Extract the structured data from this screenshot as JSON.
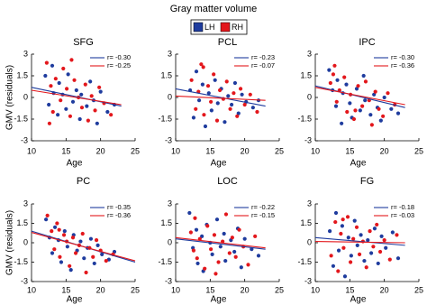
{
  "title": "Gray matter volume",
  "legend": [
    {
      "name": "LH",
      "color": "#1f3c9e"
    },
    {
      "name": "RH",
      "color": "#e3171c"
    }
  ],
  "chart_data": [
    {
      "type": "scatter",
      "title": "SFG",
      "xlabel": "Age",
      "ylabel": "GMV (residuals)",
      "xlim": [
        10,
        25
      ],
      "xticks": [
        10,
        15,
        20,
        25
      ],
      "ylim": [
        -3,
        3
      ],
      "yticks": [
        -3,
        -1.5,
        0,
        1.5,
        3
      ],
      "series": [
        {
          "color": "#1f3c9e",
          "x": [
            12,
            12.5,
            13,
            13.2,
            13.8,
            14,
            14.5,
            15,
            15.3,
            16,
            16.5,
            17,
            17.2,
            18,
            18.5,
            19,
            19.5,
            20,
            21,
            22
          ],
          "values": [
            1.5,
            -0.5,
            2.2,
            0.3,
            -1.2,
            1.0,
            0.2,
            -0.8,
            1.6,
            -0.3,
            0.5,
            -1.5,
            0.2,
            -0.6,
            1.1,
            -0.2,
            -1.8,
            0.4,
            -1.0,
            -0.5
          ]
        },
        {
          "color": "#e3171c",
          "x": [
            12.2,
            12.8,
            13.1,
            13.5,
            14.2,
            14.6,
            15.1,
            15.6,
            16.2,
            16.8,
            17.3,
            17.8,
            18.2,
            18.7,
            19.2,
            19.8,
            20.5,
            21.5,
            12.6,
            15.8
          ],
          "values": [
            2.4,
            0.8,
            -1.0,
            1.3,
            -0.2,
            2.0,
            0.6,
            -1.3,
            1.2,
            0.0,
            -0.7,
            0.9,
            -1.6,
            0.1,
            -0.9,
            0.7,
            -0.4,
            -1.2,
            -1.8,
            2.6
          ]
        }
      ],
      "fits": [
        {
          "name": "r= -0.30",
          "color": "#1f3c9e",
          "x": [
            10,
            23
          ],
          "values": [
            0.7,
            -0.6
          ]
        },
        {
          "name": "r= -0.25",
          "color": "#e3171c",
          "x": [
            10,
            23
          ],
          "values": [
            0.5,
            -0.5
          ]
        }
      ]
    },
    {
      "type": "scatter",
      "title": "PCL",
      "xlabel": "Age",
      "xlim": [
        10,
        25
      ],
      "xticks": [
        10,
        15,
        20,
        25
      ],
      "ylim": [
        -3,
        3
      ],
      "yticks": [
        -3,
        -1.5,
        0,
        1.5,
        3
      ],
      "series": [
        {
          "color": "#1f3c9e",
          "x": [
            12.1,
            12.6,
            13,
            13.4,
            13.9,
            14.3,
            14.8,
            15.2,
            15.7,
            16.1,
            16.6,
            17.1,
            17.6,
            18.1,
            18.6,
            19.1,
            19.6,
            20.2,
            21.2,
            22
          ],
          "values": [
            0.5,
            -1.4,
            1.8,
            -0.2,
            0.9,
            -2.0,
            0.3,
            -0.9,
            1.2,
            -0.4,
            0.6,
            -1.7,
            0.1,
            -0.5,
            1.0,
            -1.1,
            0.2,
            -0.3,
            -0.7,
            -0.2
          ]
        },
        {
          "color": "#e3171c",
          "x": [
            12.3,
            12.9,
            13.3,
            13.7,
            14.1,
            14.7,
            15.1,
            15.5,
            16,
            16.4,
            16.9,
            17.4,
            17.9,
            18.4,
            18.9,
            19.4,
            20,
            20.8,
            21.8,
            14
          ],
          "values": [
            1.2,
            -0.8,
            0.4,
            2.3,
            -1.2,
            0.8,
            -0.3,
            1.6,
            -1.6,
            0.5,
            -0.1,
            1.1,
            -0.8,
            0.3,
            -1.3,
            0.6,
            -0.5,
            0.2,
            -1.0,
            2.1
          ]
        }
      ],
      "fits": [
        {
          "name": "r= -0.23",
          "color": "#1f3c9e",
          "x": [
            10,
            23
          ],
          "values": [
            0.6,
            -0.6
          ]
        },
        {
          "name": "r= -0.07",
          "color": "#e3171c",
          "x": [
            10,
            23
          ],
          "values": [
            0.1,
            -0.2
          ]
        }
      ]
    },
    {
      "type": "scatter",
      "title": "IPC",
      "xlabel": "Age",
      "xlim": [
        10,
        25
      ],
      "xticks": [
        10,
        15,
        20,
        25
      ],
      "ylim": [
        -3,
        3
      ],
      "yticks": [
        -3,
        -1.5,
        0,
        1.5,
        3
      ],
      "series": [
        {
          "color": "#1f3c9e",
          "x": [
            12,
            12.5,
            13,
            13.2,
            13.8,
            14,
            14.5,
            15,
            15.3,
            16,
            16.5,
            17,
            17.2,
            18,
            18.5,
            19,
            19.5,
            20,
            21,
            22
          ],
          "values": [
            1.9,
            0.5,
            -0.6,
            1.2,
            -1.8,
            0.3,
            0.9,
            -0.4,
            -1.4,
            0.6,
            -0.9,
            1.5,
            -0.2,
            -1.2,
            0.2,
            -0.7,
            -1.6,
            0.0,
            -0.8,
            -1.1
          ]
        },
        {
          "color": "#e3171c",
          "x": [
            12.2,
            12.8,
            13.1,
            13.5,
            14.2,
            14.6,
            15.1,
            15.6,
            16.2,
            16.8,
            17.3,
            17.8,
            18.2,
            18.7,
            19.2,
            19.8,
            20.5,
            21.5,
            12.6,
            15.8
          ],
          "values": [
            1.0,
            2.2,
            -0.3,
            0.5,
            1.4,
            -1.0,
            0.2,
            -1.5,
            0.8,
            -0.6,
            1.1,
            -0.2,
            -1.9,
            0.4,
            -0.8,
            -1.3,
            0.3,
            -0.5,
            1.6,
            -0.9
          ]
        }
      ],
      "fits": [
        {
          "name": "r= -0.30",
          "color": "#1f3c9e",
          "x": [
            10,
            23
          ],
          "values": [
            0.8,
            -0.7
          ]
        },
        {
          "name": "r= -0.36",
          "color": "#e3171c",
          "x": [
            10,
            23
          ],
          "values": [
            0.7,
            -0.5
          ]
        }
      ]
    },
    {
      "type": "scatter",
      "title": "PC",
      "xlabel": "Age",
      "ylabel": "GMV (residuals)",
      "xlim": [
        10,
        25
      ],
      "xticks": [
        10,
        15,
        20,
        25
      ],
      "ylim": [
        -3,
        3
      ],
      "yticks": [
        -3,
        -1.5,
        0,
        1.5,
        3
      ],
      "series": [
        {
          "color": "#1f3c9e",
          "x": [
            12.1,
            12.6,
            13,
            13.4,
            13.9,
            14.3,
            14.8,
            15.2,
            15.7,
            16.1,
            16.6,
            17.1,
            17.6,
            18.1,
            18.6,
            19.1,
            19.6,
            20.2,
            21.2,
            22
          ],
          "values": [
            1.8,
            0.4,
            -0.8,
            1.2,
            0.2,
            -1.5,
            0.9,
            -0.3,
            -2.1,
            0.6,
            -0.6,
            0.1,
            -1.2,
            -0.4,
            0.3,
            -1.6,
            -0.2,
            -0.9,
            -1.3,
            -0.7
          ]
        },
        {
          "color": "#e3171c",
          "x": [
            12.3,
            12.9,
            13.3,
            13.7,
            14.1,
            14.7,
            15.1,
            15.5,
            16,
            16.4,
            16.9,
            17.4,
            17.9,
            18.4,
            18.9,
            19.4,
            20,
            20.8,
            21.8,
            14
          ],
          "values": [
            2.1,
            0.9,
            -0.5,
            1.5,
            -1.1,
            0.6,
            0.1,
            -1.8,
            0.4,
            -0.8,
            -0.2,
            0.7,
            -2.3,
            -0.4,
            -1.1,
            0.2,
            -0.6,
            -1.4,
            -0.9,
            1.0
          ]
        }
      ],
      "fits": [
        {
          "name": "r= -0.35",
          "color": "#1f3c9e",
          "x": [
            10,
            25
          ],
          "values": [
            0.9,
            -1.5
          ]
        },
        {
          "name": "r= -0.36",
          "color": "#e3171c",
          "x": [
            10,
            25
          ],
          "values": [
            0.8,
            -1.4
          ]
        }
      ]
    },
    {
      "type": "scatter",
      "title": "LOC",
      "xlabel": "Age",
      "xlim": [
        10,
        25
      ],
      "xticks": [
        10,
        15,
        20,
        25
      ],
      "ylim": [
        -3,
        3
      ],
      "yticks": [
        -3,
        -1.5,
        0,
        1.5,
        3
      ],
      "series": [
        {
          "color": "#1f3c9e",
          "x": [
            12,
            12.5,
            13,
            13.2,
            13.8,
            14,
            14.5,
            15,
            15.3,
            16,
            16.5,
            17,
            17.2,
            18,
            18.5,
            19,
            19.5,
            20,
            21,
            22
          ],
          "values": [
            2.3,
            -0.4,
            1.0,
            -1.6,
            0.5,
            -2.2,
            1.4,
            0.0,
            -0.9,
            1.8,
            -0.3,
            0.7,
            -1.4,
            0.2,
            -0.7,
            1.1,
            -1.9,
            0.3,
            -0.5,
            -1.0
          ]
        },
        {
          "color": "#e3171c",
          "x": [
            12.2,
            12.8,
            13.1,
            13.5,
            14.2,
            14.6,
            15.1,
            15.6,
            16.2,
            16.8,
            17.3,
            17.8,
            18.2,
            18.7,
            19.2,
            19.8,
            20.5,
            21.5,
            12.6,
            15.8
          ],
          "values": [
            0.8,
            1.9,
            -1.2,
            0.3,
            -2.0,
            1.3,
            -0.5,
            0.6,
            -1.5,
            0.1,
            2.2,
            -0.8,
            0.4,
            -1.1,
            1.0,
            -0.3,
            -1.7,
            0.5,
            -0.6,
            -2.4
          ]
        }
      ],
      "fits": [
        {
          "name": "r= -0.22",
          "color": "#1f3c9e",
          "x": [
            10,
            23
          ],
          "values": [
            0.3,
            -0.5
          ]
        },
        {
          "name": "r= -0.15",
          "color": "#e3171c",
          "x": [
            10,
            23
          ],
          "values": [
            0.4,
            -0.4
          ]
        }
      ]
    },
    {
      "type": "scatter",
      "title": "FG",
      "xlabel": "Age",
      "xlim": [
        10,
        25
      ],
      "xticks": [
        10,
        15,
        20,
        25
      ],
      "ylim": [
        -3,
        3
      ],
      "yticks": [
        -3,
        -1.5,
        0,
        1.5,
        3
      ],
      "series": [
        {
          "color": "#1f3c9e",
          "x": [
            12.1,
            12.6,
            13,
            13.4,
            13.9,
            14.3,
            14.8,
            15.2,
            15.7,
            16.1,
            16.6,
            17.1,
            17.6,
            18.1,
            18.6,
            19.1,
            19.6,
            20.2,
            21.2,
            22
          ],
          "values": [
            0.9,
            -1.8,
            2.3,
            -0.6,
            1.3,
            -2.6,
            0.4,
            -1.0,
            1.7,
            -0.2,
            0.6,
            -1.4,
            0.2,
            -0.8,
            1.1,
            -1.6,
            0.5,
            -0.4,
            0.8,
            -1.2
          ]
        },
        {
          "color": "#e3171c",
          "x": [
            12.3,
            12.9,
            13.3,
            13.7,
            14.1,
            14.7,
            15.1,
            15.5,
            16,
            16.4,
            16.9,
            17.4,
            17.9,
            18.4,
            18.9,
            19.4,
            20,
            20.8,
            21.8,
            14
          ],
          "values": [
            -1.0,
            1.6,
            -2.2,
            0.7,
            -0.4,
            2.0,
            -1.5,
            0.3,
            1.2,
            -0.9,
            0.1,
            -1.9,
            0.9,
            -0.3,
            1.4,
            -0.7,
            0.2,
            -1.3,
            0.6,
            1.8
          ]
        }
      ],
      "fits": [
        {
          "name": "r= -0.18",
          "color": "#1f3c9e",
          "x": [
            10,
            23
          ],
          "values": [
            0.4,
            -0.2
          ]
        },
        {
          "name": "r= -0.03",
          "color": "#e3171c",
          "x": [
            10,
            23
          ],
          "values": [
            0.1,
            0.0
          ]
        }
      ]
    }
  ]
}
